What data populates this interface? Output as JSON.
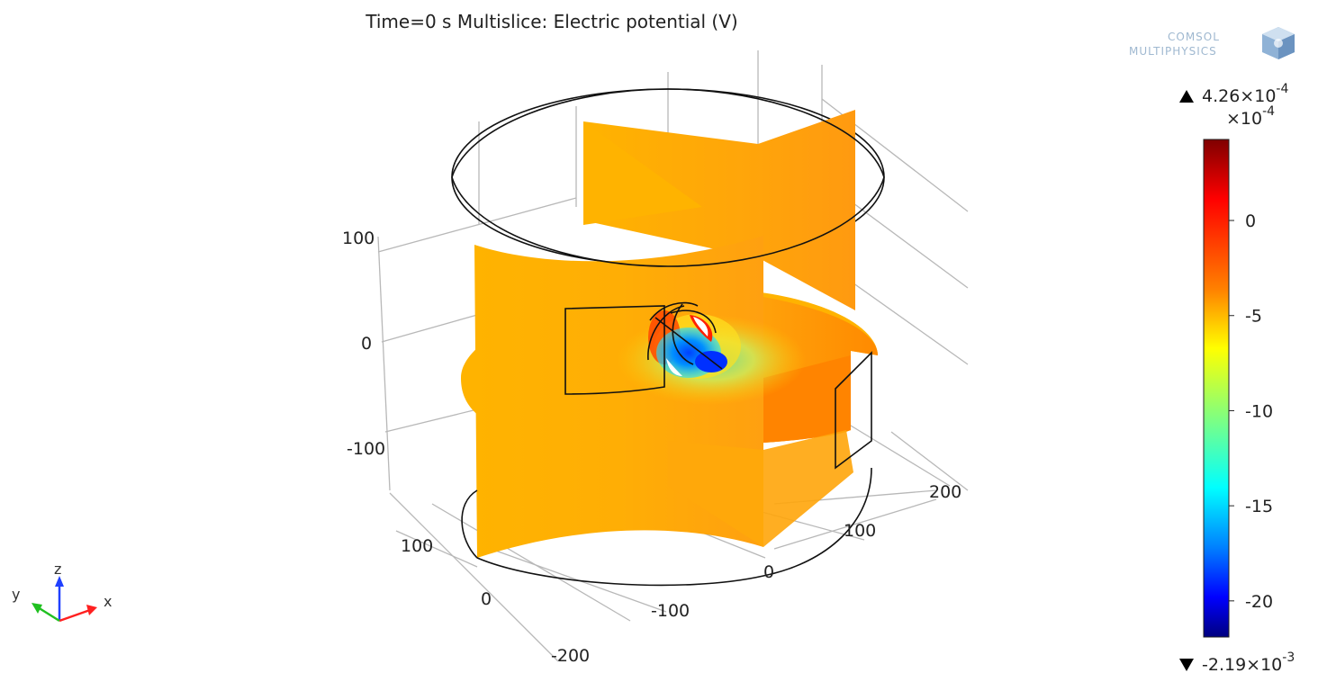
{
  "chart_data": {
    "type": "heatmap",
    "plot": "3d-multislice",
    "title": "Time=0 s   Multislice: Electric potential (V)",
    "quantity": "Electric potential",
    "unit": "V",
    "time": "0 s",
    "x_ticks": [
      "-200",
      "-100",
      "0",
      "100",
      "200"
    ],
    "y_ticks": [
      "0",
      "100"
    ],
    "z_ticks": [
      "100",
      "0",
      "-100"
    ],
    "colorbar": {
      "max_label": "4.26×10",
      "max_exp": "-4",
      "min_label": "-2.19×10",
      "min_exp": "-3",
      "scale_label": "×10",
      "scale_exp": "-4",
      "max": 0.000426,
      "min": -0.00219,
      "ticks": [
        0,
        -5,
        -10,
        -15,
        -20
      ],
      "tick_labels": [
        "0",
        "-5",
        "-10",
        "-15",
        "-20"
      ],
      "colormap": "rainbow",
      "colors": [
        "#7f0000",
        "#ff0000",
        "#ff8000",
        "#ffff00",
        "#80ff80",
        "#00ffff",
        "#0080ff",
        "#0000ff",
        "#00007f"
      ]
    },
    "axis_triad": {
      "x": "x",
      "y": "y",
      "z": "z",
      "x_color": "#ff2020",
      "y_color": "#20c020",
      "z_color": "#2040ff"
    },
    "logo": {
      "line1": "COMSOL",
      "line2": "MULTIPHYSICS"
    },
    "slice_colors": {
      "main": "#ffb300",
      "warm": "#ff9a10",
      "dark": "#ff7f00"
    }
  }
}
